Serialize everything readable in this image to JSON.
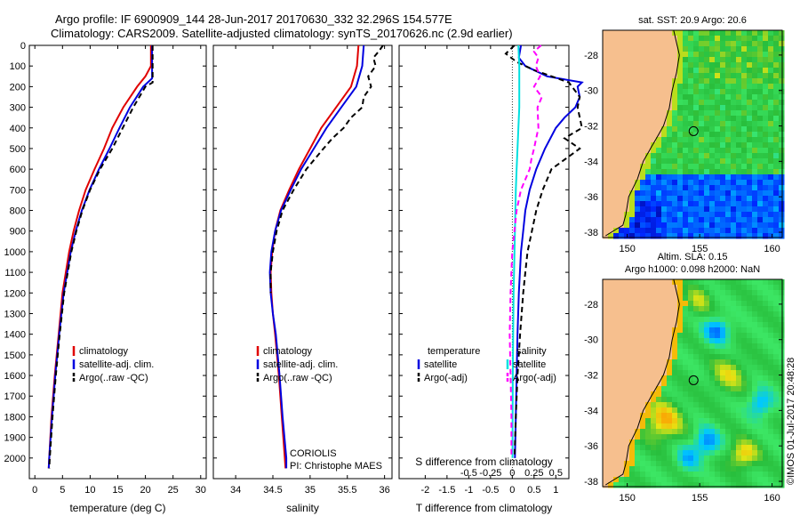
{
  "header": {
    "line1": "Argo profile: IF 6900909_144 28-Jun-2017 20170630_332 32.296S 154.577E",
    "line2": "Climatology: CARS2009. Satellite-adjusted climatology: synTS_20170626.nc (2.9d earlier)"
  },
  "colors": {
    "climatology": "#e00000",
    "satellite": "#0000e0",
    "argo": "#000000",
    "sal_satellite": "#00e0e0",
    "sal_argo": "#ff00ff",
    "land": "#f6bf8e",
    "ocean_bg": "#1040c0"
  },
  "chart_data": [
    {
      "type": "line",
      "panel": "temperature",
      "xlabel": "temperature (deg C)",
      "ylabel": "",
      "xlim": [
        -1,
        31
      ],
      "ylim": [
        2100,
        0
      ],
      "xticks": [
        0,
        5,
        10,
        15,
        20,
        25,
        30
      ],
      "yticks": [
        0,
        100,
        200,
        300,
        400,
        500,
        600,
        700,
        800,
        900,
        1000,
        1100,
        1200,
        1300,
        1400,
        1500,
        1600,
        1700,
        1800,
        1900,
        2000
      ],
      "legend": [
        "climatology",
        "satellite-adj. clim.",
        "Argo(..raw -QC)"
      ],
      "series": [
        {
          "name": "climatology",
          "depth": [
            0,
            100,
            150,
            200,
            300,
            400,
            500,
            600,
            700,
            800,
            900,
            1000,
            1200,
            1400,
            1600,
            1800,
            2000,
            2050
          ],
          "values": [
            21,
            21,
            20,
            18.5,
            16,
            14,
            12.5,
            10.8,
            9.2,
            8.0,
            7.0,
            6.2,
            5.0,
            4.3,
            3.6,
            3.0,
            2.6,
            2.5
          ]
        },
        {
          "name": "satellite-adj. clim.",
          "depth": [
            0,
            100,
            160,
            200,
            300,
            400,
            500,
            600,
            700,
            800,
            900,
            1000,
            1200,
            1400,
            1600,
            1800,
            2000,
            2050
          ],
          "values": [
            21.2,
            21.2,
            21.2,
            19.6,
            17.2,
            15.3,
            13.5,
            11.6,
            9.9,
            8.5,
            7.4,
            6.5,
            5.2,
            4.4,
            3.7,
            3.1,
            2.6,
            2.5
          ]
        },
        {
          "name": "Argo(..raw -QC)",
          "depth": [
            0,
            100,
            180,
            200,
            300,
            400,
            500,
            600,
            700,
            800,
            900,
            1000,
            1200,
            1400,
            1600,
            1800,
            2000,
            2050
          ],
          "values": [
            21.3,
            21.3,
            21.3,
            20.0,
            17.8,
            15.9,
            14.0,
            11.8,
            10.0,
            8.6,
            7.5,
            6.6,
            5.3,
            4.5,
            3.8,
            3.2,
            2.7,
            2.6
          ]
        }
      ]
    },
    {
      "type": "line",
      "panel": "salinity",
      "xlabel": "salinity",
      "xlim": [
        33.7,
        36.1
      ],
      "ylim": [
        2100,
        0
      ],
      "xticks": [
        34,
        34.5,
        35,
        35.5,
        36
      ],
      "legend": [
        "climatology",
        "satellite-adj. clim.",
        "Argo(..raw -QC)"
      ],
      "series": [
        {
          "name": "climatology",
          "depth": [
            0,
            100,
            200,
            300,
            400,
            500,
            600,
            700,
            800,
            900,
            1000,
            1100,
            1200,
            1300,
            1400,
            1600,
            1800,
            2000,
            2050
          ],
          "values": [
            35.65,
            35.63,
            35.55,
            35.35,
            35.15,
            35.0,
            34.85,
            34.72,
            34.6,
            34.53,
            34.49,
            34.47,
            34.48,
            34.5,
            34.53,
            34.58,
            34.62,
            34.66,
            34.67
          ]
        },
        {
          "name": "satellite-adj. clim.",
          "depth": [
            0,
            100,
            200,
            300,
            400,
            500,
            600,
            700,
            800,
            900,
            1000,
            1100,
            1200,
            1300,
            1400,
            1600,
            1800,
            2000,
            2050
          ],
          "values": [
            35.72,
            35.7,
            35.62,
            35.42,
            35.22,
            35.05,
            34.88,
            34.74,
            34.61,
            34.53,
            34.48,
            34.46,
            34.47,
            34.5,
            34.54,
            34.59,
            34.63,
            34.68,
            34.68
          ]
        },
        {
          "name": "Argo(..raw -QC)",
          "depth": [
            0,
            30,
            60,
            100,
            150,
            200,
            250,
            300,
            350,
            400,
            450,
            500,
            600,
            700,
            800,
            900,
            1000,
            1100,
            1200
          ],
          "values": [
            35.98,
            35.92,
            35.85,
            35.88,
            35.78,
            35.82,
            35.72,
            35.7,
            35.55,
            35.45,
            35.3,
            35.18,
            34.95,
            34.78,
            34.63,
            34.55,
            34.5,
            34.47,
            34.47
          ]
        }
      ],
      "annotations": [
        "CORIOLIS",
        "PI: Christophe MAES"
      ]
    },
    {
      "type": "line",
      "panel": "difference",
      "xlabel": "T difference from climatology",
      "xlabel2": "S difference from climatology",
      "xlim": [
        -2.6,
        1.3
      ],
      "ylim": [
        2100,
        0
      ],
      "xticks": [
        -2,
        -1.5,
        -1,
        -0.5,
        0,
        0.5,
        1
      ],
      "xticklabels": [
        "-2",
        "-1.5",
        "-1",
        "-0.5",
        "0",
        "0.5",
        "1"
      ],
      "xticks2": [
        -0.5,
        -0.25,
        0,
        0.25,
        0.5
      ],
      "xticklabels2": [
        "-0.5",
        "-0.25",
        "0",
        "0.25",
        "0.5"
      ],
      "legend_temperature_title": "temperature",
      "legend_salinity_title": "salinity",
      "legend": [
        "satellite",
        "Argo(-adj)",
        "satellite",
        "Argo(-adj)"
      ],
      "series": [
        {
          "name": "satellite",
          "group": "temperature",
          "depth": [
            0,
            60,
            100,
            150,
            180,
            200,
            250,
            300,
            350,
            400,
            500,
            600,
            700,
            800,
            900,
            1000,
            1200,
            1400,
            1600,
            1800,
            2000
          ],
          "values": [
            0.2,
            0.15,
            0.3,
            0.8,
            1.6,
            1.5,
            1.55,
            1.45,
            1.2,
            1.0,
            0.75,
            0.55,
            0.4,
            0.3,
            0.25,
            0.2,
            0.15,
            0.12,
            0.1,
            0.08,
            0.06
          ]
        },
        {
          "name": "Argo(-adj)",
          "group": "temperature",
          "depth": [
            0,
            40,
            80,
            120,
            180,
            250,
            300,
            400,
            450,
            500,
            600,
            700,
            800,
            900,
            1000,
            1100,
            1200,
            1400,
            1600,
            1800,
            2000
          ],
          "values": [
            0.05,
            -0.15,
            0.1,
            0.5,
            1.3,
            1.55,
            1.5,
            1.6,
            1.2,
            1.55,
            0.9,
            0.7,
            0.55,
            0.45,
            0.35,
            0.3,
            0.25,
            0.18,
            0.12,
            0.08,
            0.05
          ]
        },
        {
          "name": "satellite",
          "group": "salinity",
          "depth": [
            0,
            100,
            200,
            300,
            400,
            500,
            600,
            700,
            800,
            900,
            1000,
            1200,
            1400,
            1600,
            1800,
            2000
          ],
          "values": [
            0.07,
            0.08,
            0.08,
            0.08,
            0.07,
            0.06,
            0.05,
            0.04,
            0.035,
            0.03,
            0.025,
            0.015,
            0.01,
            0.006,
            0.004,
            0.003
          ]
        },
        {
          "name": "Argo(-adj)",
          "group": "salinity",
          "depth": [
            0,
            30,
            60,
            100,
            150,
            200,
            250,
            300,
            400,
            500,
            550,
            600,
            700,
            800,
            1000,
            1200,
            1400,
            1600,
            1800,
            2000
          ],
          "values": [
            0.33,
            0.25,
            0.3,
            0.27,
            0.32,
            0.25,
            0.34,
            0.29,
            0.3,
            0.25,
            0.22,
            0.2,
            0.1,
            0.05,
            0.0,
            -0.02,
            -0.03,
            -0.02,
            -0.01,
            -0.01
          ]
        }
      ],
      "annotations": []
    },
    {
      "type": "heatmap",
      "panel": "sst-map",
      "title": "sat. SST: 20.9  Argo: 20.6",
      "xticks": [
        150,
        155,
        160
      ],
      "yticks": [
        -28,
        -30,
        -32,
        -34,
        -36,
        -38
      ],
      "xlim": [
        148.3,
        160.7
      ],
      "ylim": [
        -38.3,
        -26.6
      ],
      "marker": {
        "lon": 154.577,
        "lat": -32.296
      }
    },
    {
      "type": "heatmap",
      "panel": "sla-map",
      "title": "Altim. SLA: 0.15",
      "subtitle": "Argo h1000: 0.098  h2000: NaN",
      "xticks": [
        150,
        155,
        160
      ],
      "yticks": [
        -28,
        -30,
        -32,
        -34,
        -36,
        -38
      ],
      "xlim": [
        148.3,
        160.7
      ],
      "ylim": [
        -38.3,
        -26.6
      ],
      "marker": {
        "lon": 154.577,
        "lat": -32.296
      }
    }
  ],
  "footer": {
    "credit": "©IMOS 01-Jul-2017 20:48:28"
  }
}
